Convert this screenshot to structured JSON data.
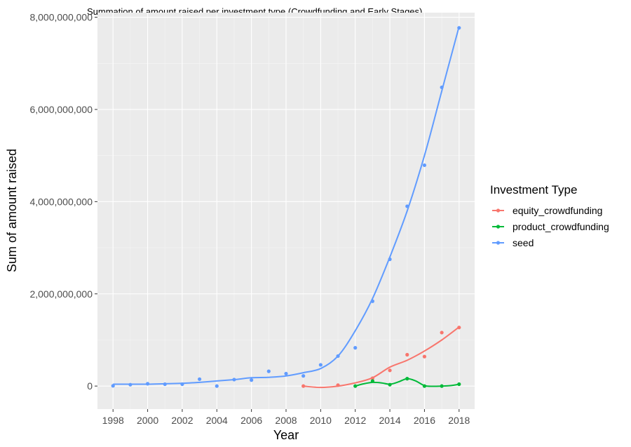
{
  "chart_data": {
    "type": "scatter",
    "title": "Summation of amount raised per investment type (Crowdfunding and Early Stages)",
    "xlabel": "Year",
    "ylabel": "Sum of amount raised",
    "xlim": [
      1997.1,
      2018.9
    ],
    "ylim": [
      -500000000,
      8100000000
    ],
    "x_ticks": [
      1998,
      2000,
      2002,
      2004,
      2006,
      2008,
      2010,
      2012,
      2014,
      2016,
      2018
    ],
    "x_tick_labels": [
      "1998",
      "2000",
      "2002",
      "2004",
      "2006",
      "2008",
      "2010",
      "2012",
      "2014",
      "2016",
      "2018"
    ],
    "y_ticks": [
      0,
      2000000000,
      4000000000,
      6000000000,
      8000000000
    ],
    "y_tick_labels": [
      "0",
      "2,000,000,000",
      "4,000,000,000",
      "6,000,000,000",
      "8,000,000,000"
    ],
    "grid": true,
    "smoothed_trend_lines": true,
    "legend": {
      "title": "Investment Type",
      "position": "right",
      "entries": [
        "equity_crowdfunding",
        "product_crowdfunding",
        "seed"
      ]
    },
    "series": [
      {
        "name": "equity_crowdfunding",
        "color": "#f8766d",
        "points": [
          [
            2009,
            0
          ],
          [
            2011,
            20000000
          ],
          [
            2013,
            170000000
          ],
          [
            2014,
            340000000
          ],
          [
            2015,
            680000000
          ],
          [
            2016,
            640000000
          ],
          [
            2017,
            1160000000
          ],
          [
            2018,
            1270000000
          ]
        ],
        "trend": [
          [
            2009,
            0
          ],
          [
            2010,
            -30000000
          ],
          [
            2011,
            0
          ],
          [
            2012,
            70000000
          ],
          [
            2013,
            180000000
          ],
          [
            2014,
            410000000
          ],
          [
            2015,
            560000000
          ],
          [
            2016,
            760000000
          ],
          [
            2017,
            1000000000
          ],
          [
            2018,
            1280000000
          ]
        ]
      },
      {
        "name": "product_crowdfunding",
        "color": "#00ba38",
        "points": [
          [
            2012,
            0
          ],
          [
            2013,
            110000000
          ],
          [
            2014,
            30000000
          ],
          [
            2015,
            160000000
          ],
          [
            2016,
            0
          ],
          [
            2017,
            0
          ],
          [
            2018,
            40000000
          ]
        ],
        "trend": [
          [
            2012,
            0
          ],
          [
            2012.5,
            50000000
          ],
          [
            2013,
            80000000
          ],
          [
            2013.5,
            70000000
          ],
          [
            2014,
            40000000
          ],
          [
            2014.5,
            90000000
          ],
          [
            2015,
            160000000
          ],
          [
            2015.5,
            110000000
          ],
          [
            2016,
            10000000
          ],
          [
            2016.5,
            -5000000
          ],
          [
            2017,
            0
          ],
          [
            2017.5,
            10000000
          ],
          [
            2018,
            40000000
          ]
        ]
      },
      {
        "name": "seed",
        "color": "#619cff",
        "points": [
          [
            1998,
            5000000
          ],
          [
            1999,
            30000000
          ],
          [
            2000,
            50000000
          ],
          [
            2001,
            40000000
          ],
          [
            2002,
            40000000
          ],
          [
            2003,
            150000000
          ],
          [
            2004,
            0
          ],
          [
            2005,
            140000000
          ],
          [
            2006,
            130000000
          ],
          [
            2007,
            320000000
          ],
          [
            2008,
            270000000
          ],
          [
            2009,
            220000000
          ],
          [
            2010,
            460000000
          ],
          [
            2011,
            650000000
          ],
          [
            2012,
            830000000
          ],
          [
            2013,
            1840000000
          ],
          [
            2014,
            2750000000
          ],
          [
            2015,
            3900000000
          ],
          [
            2016,
            4790000000
          ],
          [
            2017,
            6480000000
          ],
          [
            2018,
            7770000000
          ]
        ],
        "trend": [
          [
            1998,
            40000000
          ],
          [
            1999,
            40000000
          ],
          [
            2000,
            40000000
          ],
          [
            2001,
            50000000
          ],
          [
            2002,
            60000000
          ],
          [
            2003,
            80000000
          ],
          [
            2004,
            110000000
          ],
          [
            2005,
            140000000
          ],
          [
            2006,
            180000000
          ],
          [
            2007,
            190000000
          ],
          [
            2008,
            220000000
          ],
          [
            2009,
            290000000
          ],
          [
            2010,
            380000000
          ],
          [
            2011,
            650000000
          ],
          [
            2012,
            1200000000
          ],
          [
            2013,
            1900000000
          ],
          [
            2014,
            2800000000
          ],
          [
            2015,
            3800000000
          ],
          [
            2016,
            5000000000
          ],
          [
            2017,
            6400000000
          ],
          [
            2018,
            7800000000
          ]
        ]
      }
    ]
  }
}
